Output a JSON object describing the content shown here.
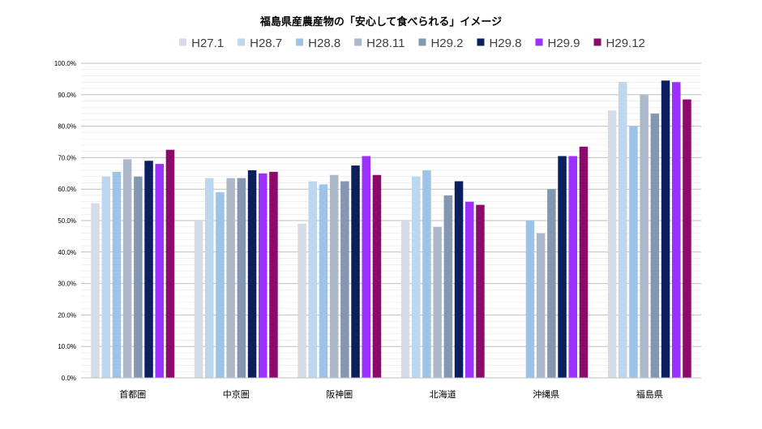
{
  "chart_data": {
    "type": "bar",
    "title": "福島県産農産物の「安心して食べられる」イメージ",
    "xlabel": "",
    "ylabel": "",
    "ylim": [
      0,
      100
    ],
    "y_tick_labels": [
      "0.0%",
      "10.0%",
      "20.0%",
      "30.0%",
      "40.0%",
      "50.0%",
      "60.0%",
      "70.0%",
      "80.0%",
      "90.0%",
      "100.0%"
    ],
    "categories": [
      "首都圏",
      "中京圏",
      "阪神圏",
      "北海道",
      "沖縄県",
      "福島県"
    ],
    "legend_position": "top",
    "grid": true,
    "series": [
      {
        "name": "H27.1",
        "color": "#d6dce5",
        "values": [
          55.5,
          50.0,
          49.0,
          50.0,
          null,
          85.0
        ]
      },
      {
        "name": "H28.7",
        "color": "#bdd7ee",
        "values": [
          64.0,
          63.5,
          62.5,
          64.0,
          null,
          94.0
        ]
      },
      {
        "name": "H28.8",
        "color": "#9dc3e6",
        "values": [
          65.5,
          59.0,
          61.5,
          66.0,
          50.0,
          80.0
        ]
      },
      {
        "name": "H28.11",
        "color": "#adb9ca",
        "values": [
          69.5,
          63.5,
          64.5,
          48.0,
          46.0,
          90.0
        ]
      },
      {
        "name": "H29.2",
        "color": "#8497b0",
        "values": [
          64.0,
          63.5,
          62.5,
          58.0,
          60.0,
          84.0
        ]
      },
      {
        "name": "H29.8",
        "color": "#0a1f5c",
        "values": [
          69.0,
          66.0,
          67.5,
          62.5,
          70.5,
          94.5
        ]
      },
      {
        "name": "H29.9",
        "color": "#9b30ff",
        "values": [
          68.0,
          65.0,
          70.5,
          56.0,
          70.5,
          94.0
        ]
      },
      {
        "name": "H29.12",
        "color": "#8b0a6a",
        "values": [
          72.5,
          65.5,
          64.5,
          55.0,
          73.5,
          88.5
        ]
      }
    ]
  }
}
